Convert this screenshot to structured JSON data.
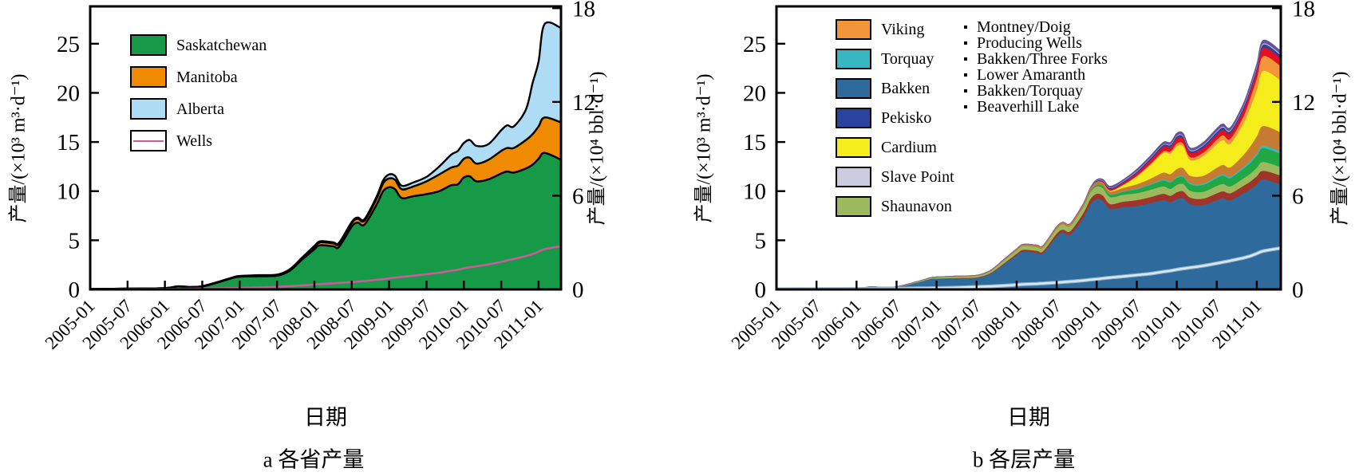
{
  "figure": {
    "background": "#ffffff"
  },
  "chart_data": [
    {
      "id": "a",
      "type": "area",
      "stacked": true,
      "caption": "a 各省产量",
      "xlabel": "日期",
      "ylabel_left": "产量/(×10³ m³·d⁻¹)",
      "ylabel_right": "产量/(×10⁴ bbl·d⁻¹)",
      "x_tick_labels": [
        "2005-01",
        "2005-07",
        "2006-01",
        "2006-07",
        "2007-01",
        "2007-07",
        "2008-01",
        "2008-07",
        "2009-01",
        "2009-07",
        "2010-01",
        "2010-07",
        "2011-01"
      ],
      "y_left_ticks": [
        0,
        5,
        10,
        15,
        20,
        25
      ],
      "y_right_ticks": [
        0,
        6,
        12,
        18
      ],
      "ylim_left": [
        0,
        28.8
      ],
      "ylim_right": [
        0,
        18.1
      ],
      "grid": false,
      "legend_position": "upper-left-inside",
      "x": [
        2005.0,
        2005.5,
        2006.0,
        2006.17,
        2006.33,
        2006.5,
        2006.75,
        2006.92,
        2007.0,
        2007.25,
        2007.5,
        2007.67,
        2007.83,
        2008.0,
        2008.08,
        2008.25,
        2008.33,
        2008.5,
        2008.58,
        2008.67,
        2008.83,
        2008.92,
        2009.0,
        2009.08,
        2009.17,
        2009.33,
        2009.5,
        2009.67,
        2009.83,
        2009.92,
        2010.0,
        2010.08,
        2010.17,
        2010.33,
        2010.5,
        2010.58,
        2010.67,
        2010.83,
        2010.92,
        2011.0,
        2011.08,
        2011.3
      ],
      "series": [
        {
          "name": "Saskatchewan",
          "color": "#169a47",
          "values": [
            0.05,
            0.08,
            0.12,
            0.3,
            0.22,
            0.3,
            0.8,
            1.2,
            1.3,
            1.35,
            1.4,
            1.9,
            3.0,
            4.1,
            4.5,
            4.4,
            4.35,
            6.4,
            6.8,
            6.6,
            8.6,
            10.0,
            10.4,
            10.2,
            9.3,
            9.5,
            9.7,
            10.0,
            10.6,
            10.7,
            11.4,
            11.5,
            11.0,
            11.2,
            11.8,
            12.0,
            11.9,
            12.3,
            12.7,
            13.3,
            13.9,
            13.2
          ]
        },
        {
          "name": "Manitoba",
          "color": "#f08a00",
          "values": [
            0,
            0,
            0.02,
            0.02,
            0.03,
            0.03,
            0.05,
            0.05,
            0.05,
            0.07,
            0.08,
            0.1,
            0.15,
            0.25,
            0.3,
            0.3,
            0.3,
            0.35,
            0.4,
            0.4,
            0.6,
            0.8,
            0.9,
            0.95,
            0.9,
            1.0,
            1.3,
            1.7,
            1.8,
            1.9,
            1.9,
            1.9,
            1.8,
            2.0,
            2.3,
            2.4,
            2.5,
            2.9,
            3.1,
            3.3,
            3.6,
            3.8
          ]
        },
        {
          "name": "Alberta",
          "color": "#aedcf5",
          "values": [
            0,
            0,
            0,
            0,
            0,
            0,
            0,
            0,
            0.02,
            0.03,
            0.03,
            0.05,
            0.05,
            0.08,
            0.1,
            0.1,
            0.1,
            0.12,
            0.12,
            0.15,
            0.2,
            0.3,
            0.4,
            0.4,
            0.35,
            0.4,
            0.45,
            0.8,
            1.3,
            1.5,
            1.6,
            1.8,
            1.8,
            1.6,
            2.1,
            2.3,
            2.2,
            3.1,
            5.2,
            6.6,
            9.5,
            9.6
          ]
        }
      ],
      "line_series": [
        {
          "name": "Wells",
          "color": "#cb5a9d",
          "values": [
            0.02,
            0.03,
            0.05,
            0.06,
            0.07,
            0.09,
            0.12,
            0.14,
            0.15,
            0.2,
            0.28,
            0.33,
            0.4,
            0.5,
            0.55,
            0.62,
            0.66,
            0.75,
            0.8,
            0.85,
            0.97,
            1.05,
            1.12,
            1.2,
            1.27,
            1.4,
            1.55,
            1.7,
            1.9,
            2.0,
            2.15,
            2.25,
            2.35,
            2.55,
            2.8,
            2.95,
            3.1,
            3.4,
            3.6,
            3.85,
            4.1,
            4.4
          ]
        }
      ],
      "legend": [
        {
          "label": "Saskatchewan",
          "swatch": "fill",
          "color": "#169a47"
        },
        {
          "label": "Manitoba",
          "swatch": "fill",
          "color": "#f08a00"
        },
        {
          "label": "Alberta",
          "swatch": "fill",
          "color": "#aedcf5"
        },
        {
          "label": "Wells",
          "swatch": "line",
          "color": "#cb5a9d"
        }
      ]
    },
    {
      "id": "b",
      "type": "area",
      "stacked": true,
      "caption": "b 各层产量",
      "xlabel": "日期",
      "ylabel_left": "产量/(×10³ m³·d⁻¹)",
      "ylabel_right": "产量/(×10⁴ bbl·d⁻¹)",
      "x_tick_labels": [
        "2005-01",
        "2005-07",
        "2006-01",
        "2006-07",
        "2007-01",
        "2007-07",
        "2008-01",
        "2008-07",
        "2009-01",
        "2009-07",
        "2010-01",
        "2010-07",
        "2011-01"
      ],
      "y_left_ticks": [
        0,
        5,
        10,
        15,
        20,
        25
      ],
      "y_right_ticks": [
        0,
        6,
        12,
        18
      ],
      "ylim_left": [
        0,
        28.8
      ],
      "ylim_right": [
        0,
        18.1
      ],
      "grid": false,
      "legend_position": "upper-left-inside-two-columns",
      "x": [
        2005.0,
        2005.5,
        2006.0,
        2006.17,
        2006.33,
        2006.5,
        2006.75,
        2006.92,
        2007.0,
        2007.25,
        2007.5,
        2007.67,
        2007.83,
        2008.0,
        2008.08,
        2008.25,
        2008.33,
        2008.5,
        2008.58,
        2008.67,
        2008.83,
        2008.92,
        2009.0,
        2009.08,
        2009.17,
        2009.33,
        2009.5,
        2009.67,
        2009.83,
        2009.92,
        2010.0,
        2010.08,
        2010.17,
        2010.33,
        2010.5,
        2010.58,
        2010.67,
        2010.83,
        2010.92,
        2011.0,
        2011.08,
        2011.3
      ],
      "series": [
        {
          "name": "Bakken",
          "color": "#2e6a9b",
          "values": [
            0.05,
            0.07,
            0.1,
            0.25,
            0.2,
            0.25,
            0.7,
            1.05,
            1.1,
            1.15,
            1.2,
            1.6,
            2.5,
            3.5,
            3.85,
            3.75,
            3.7,
            5.4,
            5.8,
            5.6,
            7.3,
            8.7,
            9.2,
            9.0,
            8.2,
            8.4,
            8.5,
            8.8,
            9.1,
            8.9,
            9.2,
            9.3,
            8.7,
            8.6,
            9.1,
            9.3,
            9.1,
            9.8,
            10.2,
            10.7,
            11.2,
            10.7
          ]
        },
        {
          "name": "Bakken/Three Forks",
          "color": "#a0342a",
          "values": [
            0,
            0,
            0,
            0,
            0,
            0,
            0,
            0.02,
            0.02,
            0.03,
            0.04,
            0.06,
            0.1,
            0.15,
            0.2,
            0.2,
            0.2,
            0.3,
            0.3,
            0.35,
            0.45,
            0.5,
            0.55,
            0.55,
            0.5,
            0.55,
            0.6,
            0.6,
            0.65,
            0.65,
            0.7,
            0.7,
            0.65,
            0.65,
            0.7,
            0.7,
            0.7,
            0.75,
            0.8,
            0.85,
            0.9,
            0.9
          ]
        },
        {
          "name": "Shaunavon",
          "color": "#9cba5d",
          "values": [
            0,
            0,
            0.02,
            0.03,
            0.03,
            0.04,
            0.08,
            0.1,
            0.12,
            0.14,
            0.16,
            0.2,
            0.3,
            0.35,
            0.4,
            0.4,
            0.4,
            0.5,
            0.55,
            0.55,
            0.65,
            0.7,
            0.75,
            0.75,
            0.7,
            0.7,
            0.7,
            0.75,
            0.75,
            0.7,
            0.75,
            0.75,
            0.7,
            0.7,
            0.75,
            0.75,
            0.7,
            0.75,
            0.8,
            0.85,
            0.9,
            0.85
          ]
        },
        {
          "name": "Bakken/Torquay",
          "color": "#21a845",
          "values": [
            0,
            0,
            0,
            0,
            0,
            0,
            0,
            0,
            0,
            0,
            0,
            0,
            0,
            0,
            0,
            0,
            0,
            0,
            0,
            0,
            0.05,
            0.1,
            0.15,
            0.2,
            0.25,
            0.3,
            0.4,
            0.5,
            0.6,
            0.65,
            0.7,
            0.7,
            0.65,
            0.7,
            0.8,
            0.85,
            0.85,
            1.0,
            1.1,
            1.25,
            1.4,
            1.35
          ]
        },
        {
          "name": "Torquay",
          "color": "#38b6c2",
          "values": [
            0,
            0,
            0,
            0,
            0,
            0,
            0,
            0,
            0,
            0,
            0,
            0,
            0,
            0,
            0,
            0,
            0,
            0,
            0,
            0,
            0,
            0,
            0.02,
            0.02,
            0.03,
            0.05,
            0.06,
            0.08,
            0.1,
            0.1,
            0.12,
            0.12,
            0.12,
            0.13,
            0.15,
            0.15,
            0.15,
            0.18,
            0.2,
            0.22,
            0.25,
            0.25
          ]
        },
        {
          "name": "Lower Amaranth",
          "color": "#c67b33",
          "values": [
            0,
            0,
            0,
            0,
            0,
            0,
            0.02,
            0.03,
            0.04,
            0.05,
            0.06,
            0.08,
            0.1,
            0.15,
            0.15,
            0.18,
            0.18,
            0.2,
            0.2,
            0.22,
            0.25,
            0.3,
            0.3,
            0.3,
            0.3,
            0.35,
            0.45,
            0.55,
            0.7,
            0.75,
            0.8,
            0.8,
            0.75,
            0.8,
            0.9,
            0.95,
            0.95,
            1.2,
            1.5,
            1.75,
            2.0,
            1.95
          ]
        },
        {
          "name": "Cardium",
          "color": "#f4ec1b",
          "values": [
            0,
            0,
            0,
            0,
            0,
            0,
            0,
            0,
            0,
            0,
            0,
            0,
            0,
            0,
            0,
            0,
            0,
            0,
            0,
            0,
            0,
            0,
            0,
            0.05,
            0.1,
            0.3,
            0.8,
            1.4,
            2.0,
            2.1,
            2.3,
            2.2,
            1.6,
            2.0,
            2.4,
            2.5,
            2.4,
            3.2,
            4.0,
            4.7,
            5.6,
            5.3
          ]
        },
        {
          "name": "Viking",
          "color": "#f2953b",
          "values": [
            0,
            0,
            0,
            0,
            0,
            0,
            0,
            0,
            0,
            0,
            0,
            0,
            0,
            0,
            0,
            0,
            0,
            0,
            0,
            0,
            0,
            0,
            0,
            0,
            0,
            0.02,
            0.05,
            0.1,
            0.15,
            0.2,
            0.3,
            0.3,
            0.3,
            0.35,
            0.45,
            0.5,
            0.5,
            0.7,
            0.95,
            1.2,
            1.5,
            1.45
          ]
        },
        {
          "name": "Montney/Doig",
          "color": "#e4101d",
          "values": [
            0,
            0,
            0,
            0,
            0,
            0,
            0,
            0,
            0,
            0,
            0,
            0,
            0,
            0,
            0,
            0,
            0,
            0,
            0,
            0,
            0,
            0,
            0.05,
            0.1,
            0.15,
            0.2,
            0.3,
            0.4,
            0.45,
            0.45,
            0.5,
            0.5,
            0.45,
            0.5,
            0.55,
            0.55,
            0.55,
            0.65,
            0.7,
            0.75,
            0.85,
            0.8
          ]
        },
        {
          "name": "Pekisko",
          "color": "#2b42a0",
          "values": [
            0,
            0,
            0,
            0,
            0,
            0,
            0,
            0,
            0,
            0,
            0,
            0,
            0,
            0,
            0,
            0,
            0,
            0,
            0,
            0,
            0,
            0.02,
            0.05,
            0.08,
            0.1,
            0.12,
            0.15,
            0.18,
            0.2,
            0.2,
            0.22,
            0.22,
            0.2,
            0.22,
            0.25,
            0.25,
            0.25,
            0.28,
            0.3,
            0.3,
            0.33,
            0.32
          ]
        },
        {
          "name": "Slave Point",
          "color": "#cccbdf",
          "values": [
            0,
            0,
            0,
            0,
            0,
            0,
            0,
            0,
            0,
            0,
            0,
            0,
            0,
            0,
            0,
            0,
            0,
            0,
            0,
            0,
            0,
            0,
            0.02,
            0.03,
            0.03,
            0.04,
            0.05,
            0.05,
            0.06,
            0.06,
            0.07,
            0.07,
            0.07,
            0.07,
            0.08,
            0.08,
            0.08,
            0.09,
            0.1,
            0.1,
            0.1,
            0.1
          ]
        },
        {
          "name": "Beaverhill Lake",
          "color": "#675299",
          "values": [
            0,
            0,
            0,
            0,
            0,
            0,
            0,
            0,
            0,
            0,
            0,
            0,
            0,
            0,
            0,
            0,
            0,
            0,
            0,
            0,
            0,
            0.05,
            0.1,
            0.12,
            0.15,
            0.15,
            0.18,
            0.2,
            0.22,
            0.22,
            0.25,
            0.25,
            0.22,
            0.25,
            0.27,
            0.27,
            0.27,
            0.3,
            0.3,
            0.32,
            0.33,
            0.32
          ]
        }
      ],
      "line_series": [
        {
          "name": "Producing Wells",
          "color": "#dbe8f1",
          "halo": "#8fb3cc",
          "values": [
            0.02,
            0.03,
            0.05,
            0.06,
            0.07,
            0.08,
            0.11,
            0.13,
            0.14,
            0.19,
            0.26,
            0.31,
            0.38,
            0.47,
            0.52,
            0.58,
            0.62,
            0.7,
            0.75,
            0.8,
            0.91,
            0.99,
            1.05,
            1.13,
            1.2,
            1.32,
            1.46,
            1.6,
            1.8,
            1.9,
            2.02,
            2.12,
            2.22,
            2.4,
            2.65,
            2.78,
            2.92,
            3.2,
            3.4,
            3.65,
            3.9,
            4.2
          ]
        }
      ],
      "legend": [
        {
          "label": "Viking",
          "swatch": "fill",
          "color": "#f2953b",
          "column": 1
        },
        {
          "label": "Torquay",
          "swatch": "fill",
          "color": "#38b6c2",
          "column": 1
        },
        {
          "label": "Bakken",
          "swatch": "fill",
          "color": "#2e6a9b",
          "column": 1
        },
        {
          "label": "Pekisko",
          "swatch": "fill",
          "color": "#2b42a0",
          "column": 1
        },
        {
          "label": "Cardium",
          "swatch": "fill",
          "color": "#f4ec1b",
          "column": 1
        },
        {
          "label": "Slave Point",
          "swatch": "fill",
          "color": "#cccbdf",
          "column": 1
        },
        {
          "label": "Shaunavon",
          "swatch": "fill",
          "color": "#9cba5d",
          "column": 1
        },
        {
          "label": "Montney/Doig",
          "swatch": "fill",
          "color": "#e4101d",
          "column": 2
        },
        {
          "label": "Producing Wells",
          "swatch": "fill",
          "color": "#b9c7d2",
          "column": 2
        },
        {
          "label": "Bakken/Three Forks",
          "swatch": "fill",
          "color": "#a0342a",
          "column": 2
        },
        {
          "label": "Lower Amaranth",
          "swatch": "fill",
          "color": "#c67b33",
          "column": 2
        },
        {
          "label": "Bakken/Torquay",
          "swatch": "fill",
          "color": "#21a845",
          "column": 2
        },
        {
          "label": "Beaverhill Lake",
          "swatch": "fill",
          "color": "#675299",
          "column": 2
        }
      ]
    }
  ]
}
